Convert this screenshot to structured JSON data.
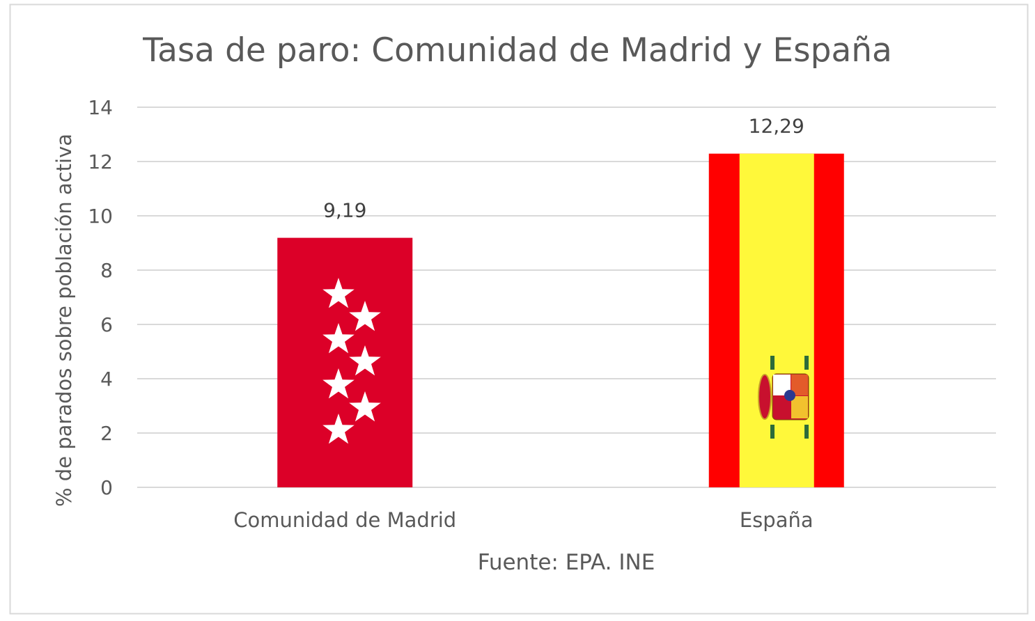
{
  "chart_data": {
    "type": "bar",
    "title": "Tasa de paro: Comunidad de Madrid y España",
    "categories": [
      "Comunidad de Madrid",
      "España"
    ],
    "values": [
      9.19,
      12.29
    ],
    "data_labels": [
      "9,19",
      "12,29"
    ],
    "xlabel": "Fuente: EPA. INE",
    "ylabel": "% de parados sobre población activa",
    "ylim": [
      0,
      14
    ],
    "yticks": [
      0,
      2,
      4,
      6,
      8,
      10,
      12,
      14
    ],
    "grid": true,
    "legend": "none",
    "bar_fills": [
      "flag-comunidad-de-madrid",
      "flag-espana"
    ],
    "colors": {
      "madrid_red": "#DC0028",
      "spain_red": "#FF0000",
      "spain_yellow": "#FFF83A",
      "grid": "#D9D9D9",
      "text": "#595959"
    }
  }
}
